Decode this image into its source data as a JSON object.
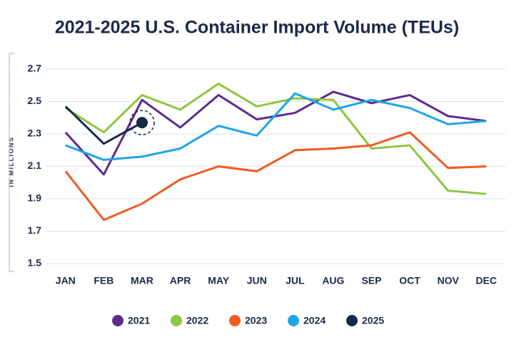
{
  "chart_data": {
    "type": "line",
    "title": "2021-2025 U.S. Container Import Volume (TEUs)",
    "y_label": "IN MILLIONS",
    "categories": [
      "JAN",
      "FEB",
      "MAR",
      "APR",
      "MAY",
      "JUN",
      "JUL",
      "AUG",
      "SEP",
      "OCT",
      "NOV",
      "DEC"
    ],
    "series": [
      {
        "name": "2021",
        "color": "#5b2a8e",
        "values": [
          2.31,
          2.05,
          2.51,
          2.34,
          2.54,
          2.39,
          2.43,
          2.56,
          2.49,
          2.54,
          2.41,
          2.38
        ]
      },
      {
        "name": "2022",
        "color": "#8dc63f",
        "values": [
          2.46,
          2.31,
          2.54,
          2.45,
          2.61,
          2.47,
          2.52,
          2.51,
          2.21,
          2.23,
          1.95,
          1.93
        ]
      },
      {
        "name": "2023",
        "color": "#f15a22",
        "values": [
          2.07,
          1.77,
          1.87,
          2.02,
          2.1,
          2.07,
          2.2,
          2.21,
          2.23,
          2.31,
          2.09,
          2.1
        ]
      },
      {
        "name": "2024",
        "color": "#1ea5e8",
        "values": [
          2.23,
          2.14,
          2.16,
          2.21,
          2.35,
          2.29,
          2.55,
          2.45,
          2.51,
          2.46,
          2.36,
          2.38
        ]
      },
      {
        "name": "2025",
        "color": "#13294b",
        "values": [
          2.47,
          2.24,
          2.37,
          null,
          null,
          null,
          null,
          null,
          null,
          null,
          null,
          null
        ]
      }
    ],
    "ylim": [
      1.45,
      2.8
    ],
    "yticks": [
      1.5,
      1.7,
      1.9,
      2.1,
      2.3,
      2.5,
      2.7
    ],
    "grid": true
  }
}
